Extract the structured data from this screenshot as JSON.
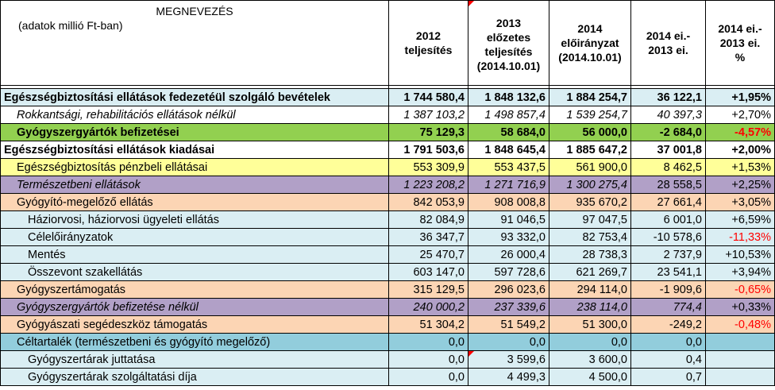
{
  "header": {
    "name_title": "MEGNEVEZÉS",
    "name_sub": "(adatok millió Ft-ban)",
    "col_2012_l1": "2012",
    "col_2012_l2": "teljesítés",
    "col_2013_l1": "2013",
    "col_2013_l2": "előzetes",
    "col_2013_l3": "teljesítés",
    "col_2013_l4": "(2014.10.01)",
    "col_2014_l1": "2014",
    "col_2014_l2": "előirányzat",
    "col_2014_l3": "(2014.10.01)",
    "col_diff1_l1": "2014 ei.-",
    "col_diff1_l2": "2013 ei.",
    "col_diff2_l1": "2014 ei.-",
    "col_diff2_l2": "2013 ei.",
    "col_diff2_l3": "%"
  },
  "rows": [
    {
      "label": "Egészségbiztosítási ellátások fedezetéül szolgáló bevételek",
      "v2012": "1 744 580,4",
      "v2013": "1 848 132,6",
      "v2014": "1 884 254,7",
      "diff": "36 122,1",
      "pct": "+1,95%"
    },
    {
      "label": "Rokkantsági, rehabilitációs ellátások nélkül",
      "v2012": "1 387 103,2",
      "v2013": "1 498 857,4",
      "v2014": "1 539 254,7",
      "diff": "40 397,3",
      "pct": "+2,70%"
    },
    {
      "label": "Gyógyszergyártók befizetései",
      "v2012": "75 129,3",
      "v2013": "58 684,0",
      "v2014": "56 000,0",
      "diff": "-2 684,0",
      "pct": "-4,57%"
    },
    {
      "label": "Egészségbiztosítási ellátások kiadásai",
      "v2012": "1 791 503,6",
      "v2013": "1 848 645,4",
      "v2014": "1 885 647,2",
      "diff": "37 001,8",
      "pct": "+2,00%"
    },
    {
      "label": "Egészségbiztosítás pénzbeli ellátásai",
      "v2012": "553 309,9",
      "v2013": "553 437,5",
      "v2014": "561 900,0",
      "diff": "8 462,5",
      "pct": "+1,53%"
    },
    {
      "label": "Természetbeni ellátások",
      "v2012": "1 223 208,2",
      "v2013": "1 271 716,9",
      "v2014": "1 300 275,4",
      "diff": "28 558,5",
      "pct": "+2,25%"
    },
    {
      "label": "Gyógyító-megelőző ellátás",
      "v2012": "842 053,9",
      "v2013": "908 008,8",
      "v2014": "935 670,2",
      "diff": "27 661,4",
      "pct": "+3,05%"
    },
    {
      "label": "Háziorvosi, háziorvosi ügyeleti ellátás",
      "v2012": "82 084,9",
      "v2013": "91 046,5",
      "v2014": "97 047,5",
      "diff": "6 001,0",
      "pct": "+6,59%"
    },
    {
      "label": "Célelőirányzatok",
      "v2012": "36 347,7",
      "v2013": "93 332,0",
      "v2014": "82 753,4",
      "diff": "-10 578,6",
      "pct": "-11,33%"
    },
    {
      "label": "Mentés",
      "v2012": "25 470,7",
      "v2013": "26 000,4",
      "v2014": "28 738,3",
      "diff": "2 737,9",
      "pct": "+10,53%"
    },
    {
      "label": "Összevont szakellátás",
      "v2012": "603 147,0",
      "v2013": "597 728,6",
      "v2014": "621 269,7",
      "diff": "23 541,1",
      "pct": "+3,94%"
    },
    {
      "label": "Gyógyszertámogatás",
      "v2012": "315 129,5",
      "v2013": "296 023,6",
      "v2014": "294 114,0",
      "diff": "-1 909,6",
      "pct": "-0,65%"
    },
    {
      "label": "Gyógyszergyártók befizetése nélkül",
      "v2012": "240 000,2",
      "v2013": "237 339,6",
      "v2014": "238 114,0",
      "diff": "774,4",
      "pct": "+0,33%"
    },
    {
      "label": "Gyógyászati segédeszköz támogatás",
      "v2012": "51 304,2",
      "v2013": "51 549,2",
      "v2014": "51 300,0",
      "diff": "-249,2",
      "pct": "-0,48%"
    },
    {
      "label": "Céltartalék (természetbeni és gyógyító megelőző)",
      "v2012": "0,0",
      "v2013": "0,0",
      "v2014": "0,0",
      "diff": "0,0",
      "pct": ""
    },
    {
      "label": "Gyógyszertárak juttatása",
      "v2012": "0,0",
      "v2013": "3 599,6",
      "v2014": "3 600,0",
      "diff": "0,4",
      "pct": ""
    },
    {
      "label": "Gyógyszertárak szolgáltatási díja",
      "v2012": "0,0",
      "v2013": "4 499,3",
      "v2014": "4 500,0",
      "diff": "0,7",
      "pct": ""
    }
  ],
  "colors": {
    "row_light_blue": "#daeef3",
    "row_green": "#92d050",
    "row_yellow": "#ffff99",
    "row_purple": "#b1a0c7",
    "row_orange": "#fcd5b4",
    "row_blue": "#b7dee8",
    "row_teal": "#92cddc",
    "negative_text": "#ff0000"
  }
}
